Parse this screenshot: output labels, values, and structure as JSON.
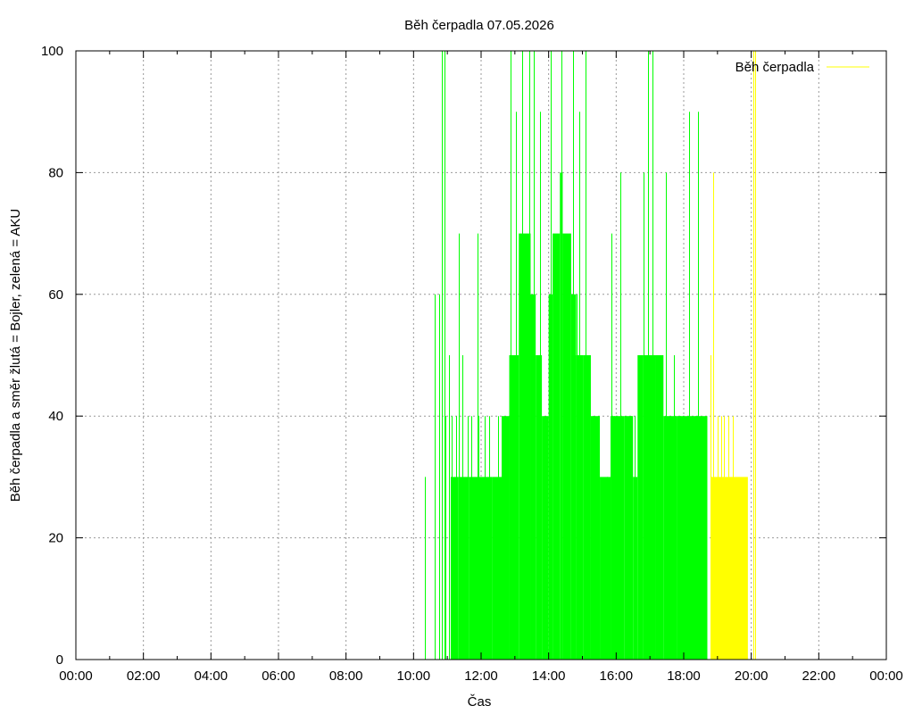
{
  "chart_data": {
    "type": "bar",
    "title": "Běh čerpadla 07.05.2026",
    "xlabel": "Čas",
    "ylabel": "Běh čerpadla a směr žlutá = Bojler, zelená = AKU",
    "x_range": [
      "00:00",
      "24:00"
    ],
    "ylim": [
      0,
      100
    ],
    "x_ticks": [
      "00:00",
      "02:00",
      "04:00",
      "06:00",
      "08:00",
      "10:00",
      "12:00",
      "14:00",
      "16:00",
      "18:00",
      "20:00",
      "22:00",
      "00:00"
    ],
    "y_ticks": [
      0,
      20,
      40,
      60,
      80,
      100
    ],
    "grid": true,
    "legend": {
      "position": "top-right",
      "entries": [
        {
          "label": "Běh čerpadla",
          "color": "#ffff00"
        }
      ]
    },
    "colors": {
      "aku": "#00ff00",
      "bojler": "#ffff00",
      "grid": "#999999"
    },
    "series": [
      {
        "name": "AKU",
        "color": "#00ff00",
        "spikes": [
          [
            "10:20",
            30
          ],
          [
            "10:38",
            60
          ],
          [
            "10:38",
            30
          ],
          [
            "10:46",
            60
          ],
          [
            "10:50",
            100
          ],
          [
            "10:55",
            100
          ],
          [
            "10:56",
            40
          ],
          [
            "11:03",
            50
          ],
          [
            "11:08",
            40
          ],
          [
            "11:15",
            40
          ],
          [
            "11:20",
            70
          ],
          [
            "11:27",
            50
          ],
          [
            "11:37",
            40
          ],
          [
            "11:43",
            40
          ],
          [
            "11:53",
            70
          ],
          [
            "11:56",
            40
          ],
          [
            "12:06",
            40
          ],
          [
            "12:15",
            40
          ],
          [
            "12:30",
            40
          ],
          [
            "12:36",
            40
          ],
          [
            "12:53",
            100
          ],
          [
            "12:58",
            50
          ],
          [
            "13:02",
            90
          ],
          [
            "13:13",
            100
          ],
          [
            "13:26",
            100
          ],
          [
            "13:30",
            60
          ],
          [
            "13:34",
            100
          ],
          [
            "13:41",
            50
          ],
          [
            "13:45",
            90
          ],
          [
            "14:03",
            100
          ],
          [
            "14:09",
            60
          ],
          [
            "14:23",
            100
          ],
          [
            "14:32",
            60
          ],
          [
            "14:43",
            100
          ],
          [
            "14:49",
            60
          ],
          [
            "14:55",
            90
          ],
          [
            "15:05",
            100
          ],
          [
            "15:12",
            50
          ],
          [
            "15:18",
            40
          ],
          [
            "15:27",
            30
          ],
          [
            "15:44",
            30
          ],
          [
            "15:52",
            70
          ],
          [
            "15:57",
            40
          ],
          [
            "16:08",
            80
          ],
          [
            "16:15",
            40
          ],
          [
            "16:26",
            40
          ],
          [
            "16:33",
            40
          ],
          [
            "16:43",
            40
          ],
          [
            "16:48",
            80
          ],
          [
            "16:56",
            100
          ],
          [
            "17:05",
            100
          ],
          [
            "17:13",
            50
          ],
          [
            "17:22",
            40
          ],
          [
            "17:29",
            80
          ],
          [
            "17:42",
            50
          ],
          [
            "17:54",
            40
          ],
          [
            "17:58",
            40
          ],
          [
            "18:09",
            90
          ],
          [
            "18:20",
            40
          ],
          [
            "18:25",
            90
          ]
        ],
        "blocks": [
          [
            "11:06",
            "11:20",
            30
          ],
          [
            "11:20",
            "11:38",
            30
          ],
          [
            "11:38",
            "12:00",
            30
          ],
          [
            "12:00",
            "12:20",
            30
          ],
          [
            "12:20",
            "12:38",
            30
          ],
          [
            "12:38",
            "12:50",
            40
          ],
          [
            "12:50",
            "13:07",
            50
          ],
          [
            "13:07",
            "13:28",
            70
          ],
          [
            "13:28",
            "13:37",
            60
          ],
          [
            "13:37",
            "13:48",
            50
          ],
          [
            "13:48",
            "14:00",
            40
          ],
          [
            "14:00",
            "14:07",
            60
          ],
          [
            "14:07",
            "14:20",
            70
          ],
          [
            "14:20",
            "14:25",
            80
          ],
          [
            "14:25",
            "14:40",
            70
          ],
          [
            "14:40",
            "14:49",
            60
          ],
          [
            "14:49",
            "15:01",
            50
          ],
          [
            "15:01",
            "15:15",
            50
          ],
          [
            "15:15",
            "15:31",
            40
          ],
          [
            "15:31",
            "15:50",
            30
          ],
          [
            "15:50",
            "16:15",
            40
          ],
          [
            "16:15",
            "16:30",
            40
          ],
          [
            "16:30",
            "16:38",
            30
          ],
          [
            "16:38",
            "16:48",
            50
          ],
          [
            "16:48",
            "17:10",
            50
          ],
          [
            "17:10",
            "17:24",
            50
          ],
          [
            "17:24",
            "17:48",
            40
          ],
          [
            "17:48",
            "18:10",
            40
          ],
          [
            "18:10",
            "18:42",
            40
          ]
        ]
      },
      {
        "name": "Bojler",
        "color": "#ffff00",
        "spikes": [
          [
            "18:48",
            50
          ],
          [
            "18:52",
            80
          ],
          [
            "19:00",
            40
          ],
          [
            "19:06",
            40
          ],
          [
            "19:12",
            40
          ],
          [
            "19:20",
            40
          ],
          [
            "19:27",
            40
          ],
          [
            "20:04",
            100
          ],
          [
            "20:07",
            100
          ]
        ],
        "blocks": [
          [
            "18:49",
            "19:54",
            30
          ]
        ]
      }
    ]
  }
}
